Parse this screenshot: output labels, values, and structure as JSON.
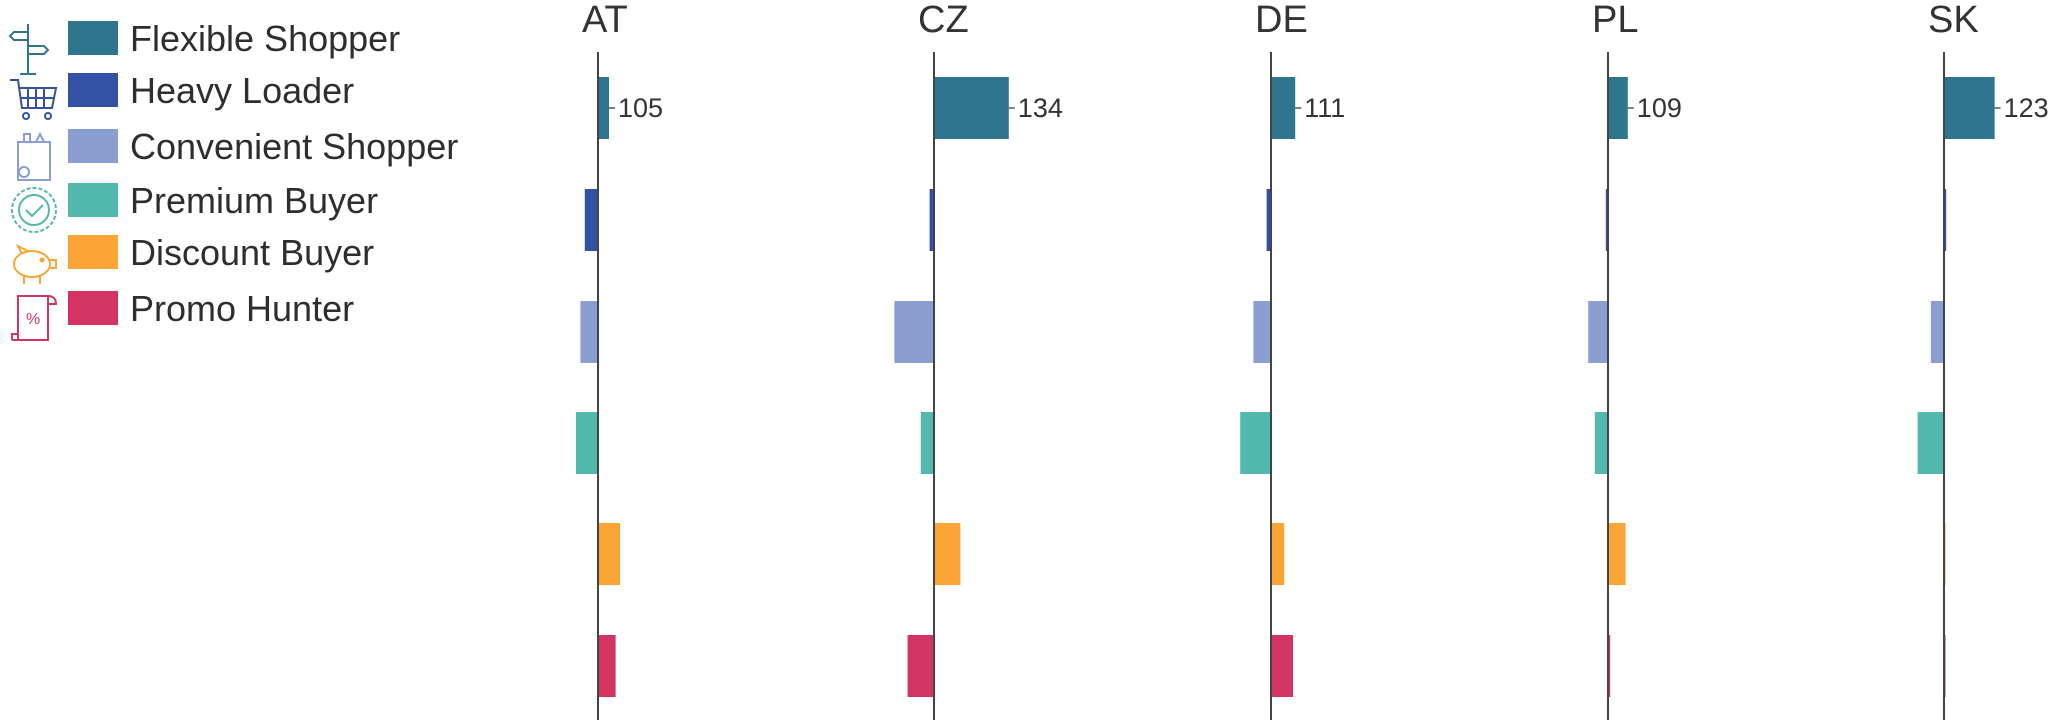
{
  "legend": {
    "items": [
      {
        "label": "Flexible Shopper",
        "color": "#30758e",
        "icon": "signpost-icon"
      },
      {
        "label": "Heavy Loader",
        "color": "#3352a6",
        "icon": "shopping-cart-icon"
      },
      {
        "label": "Convenient Shopper",
        "color": "#8a9fd0",
        "icon": "grocery-bag-icon"
      },
      {
        "label": "Premium Buyer",
        "color": "#53b8ad",
        "icon": "badge-check-icon"
      },
      {
        "label": "Discount Buyer",
        "color": "#faa535",
        "icon": "piggy-bank-icon"
      },
      {
        "label": "Promo Hunter",
        "color": "#d33463",
        "icon": "receipt-percent-icon"
      }
    ]
  },
  "chart_data": {
    "type": "bar",
    "orientation": "horizontal",
    "layout": "small-multiples",
    "categories": [
      "Flexible Shopper",
      "Heavy Loader",
      "Convenient Shopper",
      "Premium Buyer",
      "Discount Buyer",
      "Promo Hunter"
    ],
    "baseline": 100,
    "panels": [
      {
        "title": "AT",
        "values": [
          105,
          94,
          92,
          90,
          110,
          108
        ],
        "labels": [
          "105",
          "",
          "",
          "",
          "",
          ""
        ]
      },
      {
        "title": "CZ",
        "values": [
          134,
          98,
          82,
          94,
          112,
          88
        ],
        "labels": [
          "134",
          "",
          "",
          "",
          "",
          ""
        ]
      },
      {
        "title": "DE",
        "values": [
          111,
          98,
          92,
          86,
          106,
          110
        ],
        "labels": [
          "111",
          "",
          "",
          "",
          "",
          ""
        ]
      },
      {
        "title": "PL",
        "values": [
          109,
          99,
          91,
          94,
          108,
          101
        ],
        "labels": [
          "109",
          "",
          "",
          "",
          "",
          ""
        ]
      },
      {
        "title": "SK",
        "values": [
          123,
          101,
          94,
          88,
          100,
          100
        ],
        "labels": [
          "123",
          "",
          "",
          "",
          "",
          ""
        ]
      }
    ],
    "legend_position": "top-left",
    "grid": false
  }
}
